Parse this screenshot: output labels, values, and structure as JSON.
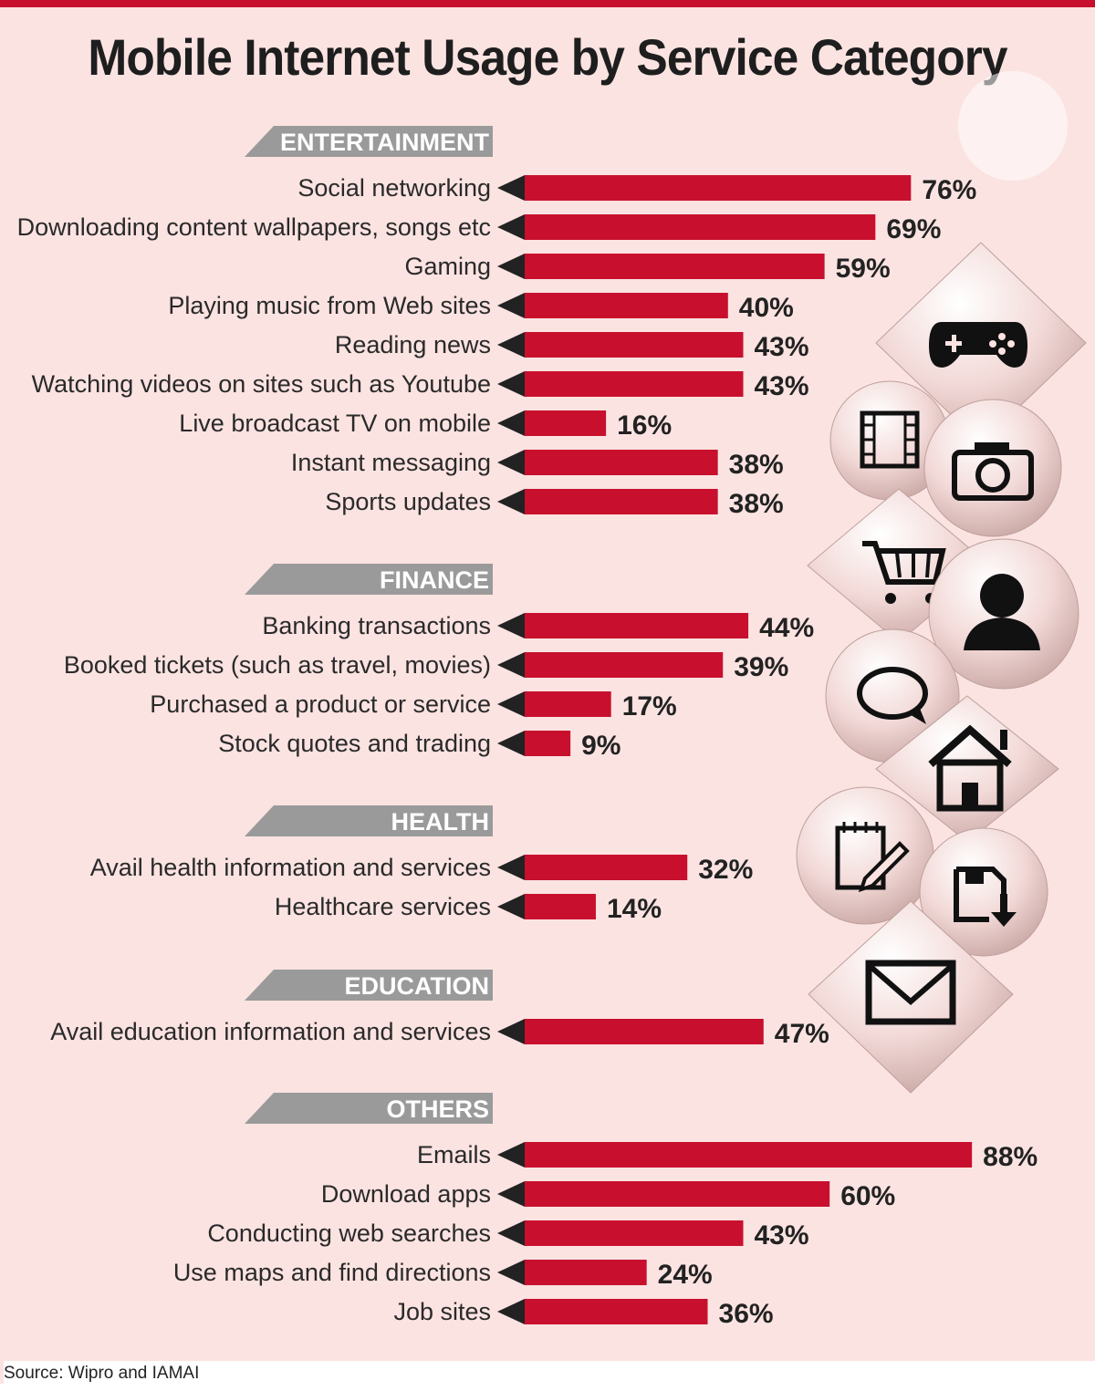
{
  "title": "Mobile Internet Usage by Service Category",
  "source": "Source: Wipro and IAMAI",
  "colors": {
    "bar": "#c8102e",
    "background": "#fbe3e1",
    "category_band": "#9a9a9a",
    "arrow": "#222222"
  },
  "chart_data": {
    "type": "bar",
    "orientation": "horizontal",
    "unit": "%",
    "xlim": [
      0,
      100
    ],
    "groups": [
      {
        "name": "ENTERTAINMENT",
        "items": [
          {
            "label": "Social networking",
            "value": 76,
            "value_label": "76%"
          },
          {
            "label": "Downloading content wallpapers, songs etc",
            "value": 69,
            "value_label": "69%"
          },
          {
            "label": "Gaming",
            "value": 59,
            "value_label": "59%"
          },
          {
            "label": "Playing music from Web sites",
            "value": 40,
            "value_label": "40%"
          },
          {
            "label": "Reading news",
            "value": 43,
            "value_label": "43%"
          },
          {
            "label": "Watching videos on sites such as Youtube",
            "value": 43,
            "value_label": "43%"
          },
          {
            "label": "Live broadcast TV on mobile",
            "value": 16,
            "value_label": "16%"
          },
          {
            "label": "Instant messaging",
            "value": 38,
            "value_label": "38%"
          },
          {
            "label": "Sports updates",
            "value": 38,
            "value_label": "38%"
          }
        ]
      },
      {
        "name": "FINANCE",
        "items": [
          {
            "label": "Banking transactions",
            "value": 44,
            "value_label": "44%"
          },
          {
            "label": "Booked tickets (such as travel, movies)",
            "value": 39,
            "value_label": "39%"
          },
          {
            "label": "Purchased a product or service",
            "value": 17,
            "value_label": "17%"
          },
          {
            "label": "Stock quotes and trading",
            "value": 9,
            "value_label": "9%"
          }
        ]
      },
      {
        "name": "HEALTH",
        "items": [
          {
            "label": "Avail health information and services",
            "value": 32,
            "value_label": "32%"
          },
          {
            "label": "Healthcare services",
            "value": 14,
            "value_label": "14%"
          }
        ]
      },
      {
        "name": "EDUCATION",
        "items": [
          {
            "label": "Avail education information and services",
            "value": 47,
            "value_label": "47%"
          }
        ]
      },
      {
        "name": "OTHERS",
        "items": [
          {
            "label": "Emails",
            "value": 88,
            "value_label": "88%"
          },
          {
            "label": "Download apps",
            "value": 60,
            "value_label": "60%"
          },
          {
            "label": "Conducting web searches",
            "value": 43,
            "value_label": "43%"
          },
          {
            "label": "Use maps and find directions",
            "value": 24,
            "value_label": "24%"
          },
          {
            "label": "Job sites",
            "value": 36,
            "value_label": "36%"
          }
        ]
      }
    ]
  },
  "decorative_icons": [
    "gamepad-icon",
    "film-icon",
    "camera-icon",
    "shopping-cart-icon",
    "user-icon",
    "chat-bubble-icon",
    "home-icon",
    "notepad-pencil-icon",
    "save-download-icon",
    "envelope-icon"
  ]
}
